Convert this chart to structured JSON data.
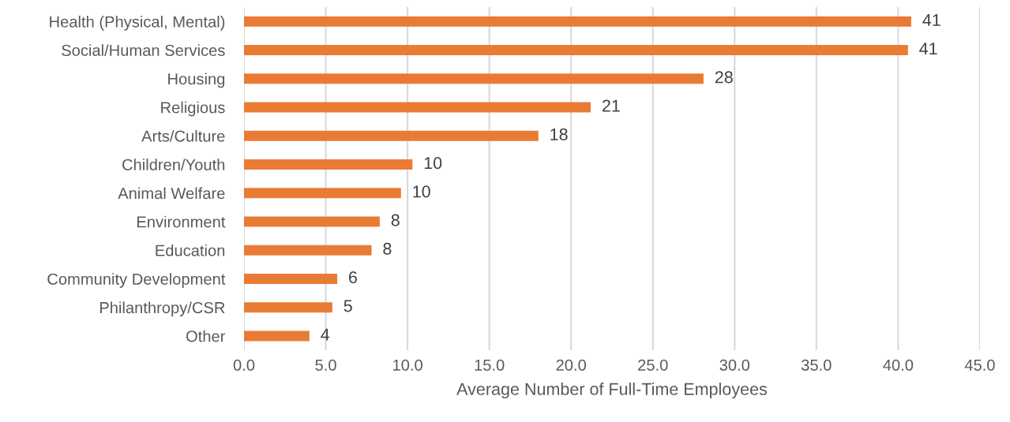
{
  "chart_data": {
    "type": "bar",
    "orientation": "horizontal",
    "categories": [
      "Health (Physical, Mental)",
      "Social/Human Services",
      "Housing",
      "Religious",
      "Arts/Culture",
      "Children/Youth",
      "Animal Welfare",
      "Environment",
      "Education",
      "Community Development",
      "Philanthropy/CSR",
      "Other"
    ],
    "values": [
      40.8,
      40.6,
      28.1,
      21.2,
      18.0,
      10.3,
      9.6,
      8.3,
      7.8,
      5.7,
      5.4,
      4.0
    ],
    "value_labels": [
      "41",
      "41",
      "28",
      "21",
      "18",
      "10",
      "10",
      "8",
      "8",
      "6",
      "5",
      "4"
    ],
    "color": "#e97b35",
    "xlabel": "Average Number of Full-Time Employees",
    "xlim": [
      0,
      45
    ],
    "xticks": [
      {
        "value": 0,
        "label": "0.0"
      },
      {
        "value": 5,
        "label": "5.0"
      },
      {
        "value": 10,
        "label": "10.0"
      },
      {
        "value": 15,
        "label": "15.0"
      },
      {
        "value": 20,
        "label": "20.0"
      },
      {
        "value": 25,
        "label": "25.0"
      },
      {
        "value": 30,
        "label": "30.0"
      },
      {
        "value": 35,
        "label": "35.0"
      },
      {
        "value": 40,
        "label": "40.0"
      },
      {
        "value": 45,
        "label": "45.0"
      }
    ],
    "grid": "x"
  }
}
